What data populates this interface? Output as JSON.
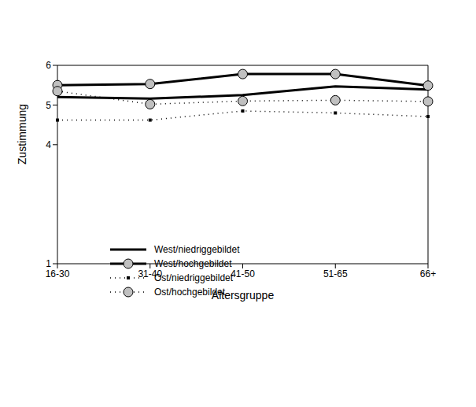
{
  "chart_data": {
    "type": "line",
    "categories": [
      "16-30",
      "31-40",
      "41-50",
      "51-65",
      "66+"
    ],
    "x_label": "Altersgruppe",
    "y_label": "Zustimmung",
    "ylim": [
      1,
      6
    ],
    "yticks": [
      1,
      4,
      5,
      6
    ],
    "grid": false,
    "legend": "lower left",
    "series": [
      {
        "name": "West/niedriggebildet",
        "color": "#000000",
        "marker": "none",
        "line_style": "solid",
        "values": [
          5.2,
          5.16,
          5.25,
          5.47,
          5.39
        ]
      },
      {
        "name": "West/hochgebildet",
        "color": "#000000",
        "marker": "circle",
        "line_style": "solid",
        "values": [
          5.5,
          5.53,
          5.78,
          5.78,
          5.49
        ]
      },
      {
        "name": "Ost/niedriggebildet",
        "color": "#000000",
        "marker": "square",
        "line_style": "dotted",
        "values": [
          4.62,
          4.62,
          4.85,
          4.8,
          4.71
        ]
      },
      {
        "name": "Ost/hochgebildet",
        "color": "#000000",
        "marker": "circle",
        "line_style": "dotted",
        "values": [
          5.35,
          5.02,
          5.1,
          5.12,
          5.09
        ]
      }
    ]
  }
}
